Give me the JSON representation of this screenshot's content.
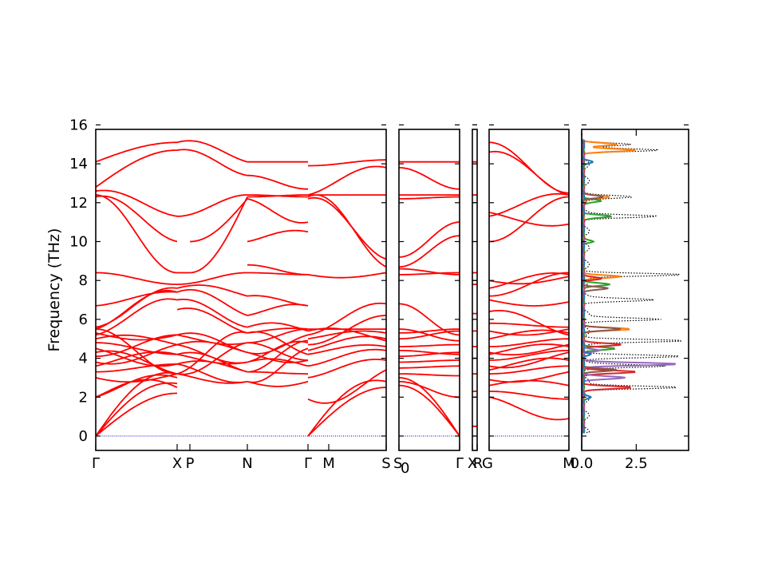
{
  "chart_data": [
    {
      "type": "line",
      "panel": "band-structure",
      "ylabel": "Frequency (THz)",
      "ylim": [
        -0.8,
        16
      ],
      "yticks": [
        "0",
        "2",
        "4",
        "6",
        "8",
        "10",
        "12",
        "14",
        "16"
      ],
      "xtick_labels": [
        "Γ",
        "X",
        "P",
        "N",
        "Γ",
        "M",
        "S",
        "S",
        "0",
        "Γ",
        "X",
        "R",
        "G",
        "M"
      ],
      "line_color": "#ff0000",
      "zero_line_color": "#0000cc",
      "segments": [
        {
          "path": [
            "Γ",
            "X",
            "P",
            "N",
            "Γ"
          ],
          "band_endpoints_THz": [
            0,
            2.0,
            3.0,
            3.6,
            4.2,
            4.5,
            5.0,
            5.4,
            6.7,
            8.4,
            12.4,
            14.0
          ]
        },
        {
          "path": [
            "M",
            "S"
          ],
          "band_endpoints_THz": [
            1.9,
            2.6,
            3.4,
            4.3,
            4.9,
            5.6,
            6.8,
            8.4,
            12.4,
            14.2
          ]
        },
        {
          "path": [
            "S0",
            "Γ"
          ],
          "band_endpoints_THz": [
            0,
            3.0,
            4.3,
            5.5,
            8.4,
            12.4,
            14.1
          ]
        },
        {
          "path": [
            "X",
            "R"
          ],
          "band_endpoints_THz": []
        },
        {
          "path": [
            "G",
            "M"
          ],
          "band_endpoints_THz": [
            0.9,
            2.6,
            3.3,
            4.6,
            5.6,
            8.3,
            12.4
          ]
        }
      ]
    },
    {
      "type": "line",
      "panel": "density-of-states",
      "xticks": [
        "0.0",
        "2.5"
      ],
      "xlim": [
        0,
        4.9
      ],
      "ylim": [
        -0.8,
        16
      ],
      "series": [
        {
          "color": "#000000",
          "style": "dotted",
          "peaks": [
            [
              2.5,
              4.4
            ],
            [
              3.6,
              3.5
            ],
            [
              4.1,
              4.6
            ],
            [
              4.9,
              4.7
            ],
            [
              6.0,
              3.5
            ],
            [
              7.0,
              3.0
            ],
            [
              8.3,
              4.6
            ],
            [
              11.3,
              3.2
            ],
            [
              12.3,
              2.0
            ],
            [
              14.7,
              3.3
            ],
            [
              15.0,
              2.0
            ]
          ]
        },
        {
          "color": "#ff7f0e",
          "style": "solid",
          "peaks": [
            [
              5.5,
              2.2
            ],
            [
              8.2,
              1.8
            ],
            [
              12.3,
              1.2
            ],
            [
              14.7,
              2.4
            ],
            [
              15.0,
              1.6
            ]
          ]
        },
        {
          "color": "#2ca02c",
          "style": "solid",
          "peaks": [
            [
              4.5,
              1.5
            ],
            [
              7.8,
              1.2
            ],
            [
              11.3,
              1.3
            ],
            [
              12.1,
              0.8
            ],
            [
              10.0,
              0.5
            ]
          ]
        },
        {
          "color": "#d62728",
          "style": "solid",
          "peaks": [
            [
              2.5,
              2.2
            ],
            [
              3.3,
              2.4
            ],
            [
              4.7,
              1.8
            ],
            [
              8.1,
              0.9
            ]
          ]
        },
        {
          "color": "#9467bd",
          "style": "solid",
          "peaks": [
            [
              3.7,
              4.4
            ],
            [
              3.0,
              1.9
            ],
            [
              4.4,
              0.8
            ]
          ]
        },
        {
          "color": "#8c564b",
          "style": "solid",
          "peaks": [
            [
              3.4,
              1.6
            ],
            [
              5.5,
              1.7
            ],
            [
              7.6,
              1.2
            ],
            [
              12.3,
              0.9
            ]
          ]
        },
        {
          "color": "#1f77b4",
          "style": "solid",
          "peaks": [
            [
              14.1,
              0.4
            ],
            [
              4.2,
              0.4
            ],
            [
              2.0,
              0.3
            ]
          ]
        }
      ]
    }
  ]
}
